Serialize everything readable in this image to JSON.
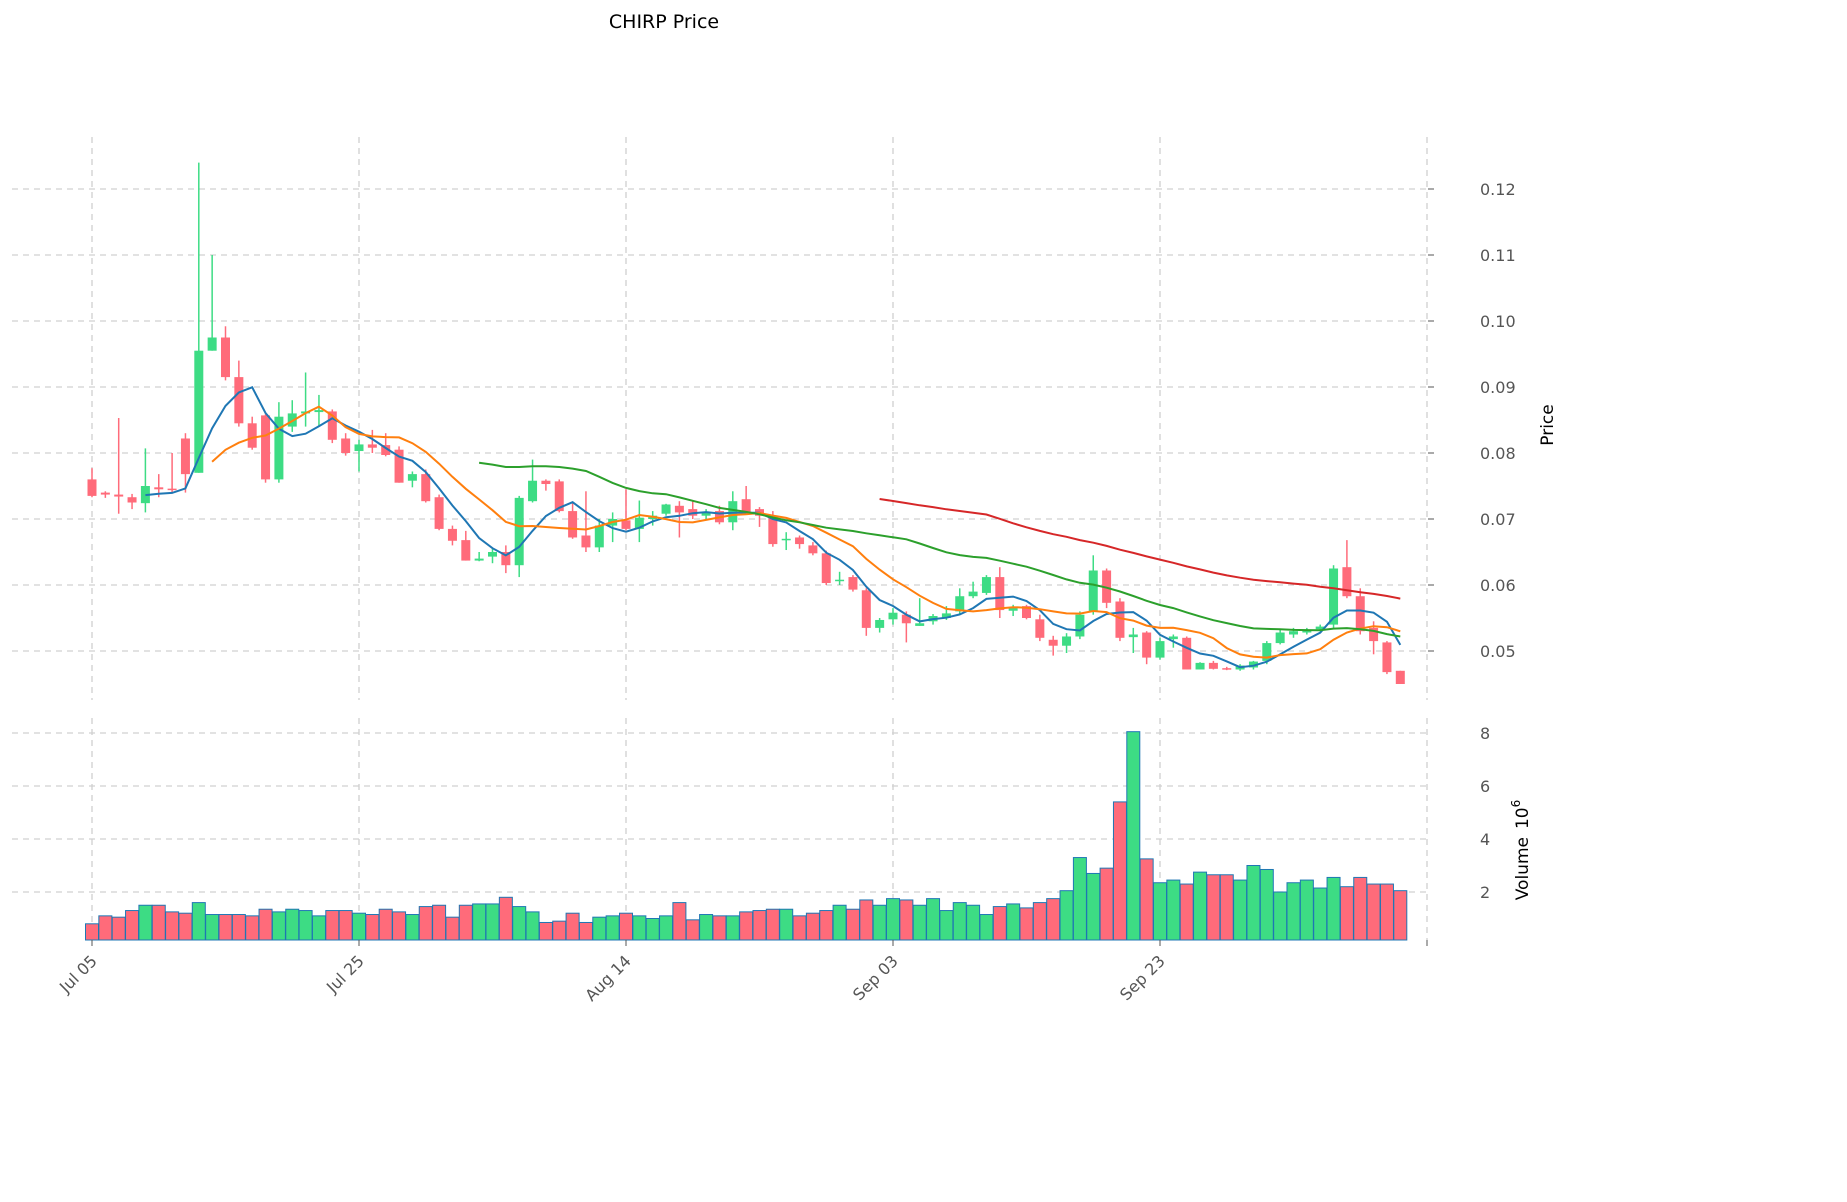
{
  "chart_data": {
    "type": "candlestick",
    "title": "CHIRP Price",
    "ylabel": "Price",
    "volume_label": "Volume",
    "volume_multiplier": "10",
    "volume_exponent": "6",
    "ylim": [
      0.043,
      0.128
    ],
    "volume_ylim": [
      0,
      8.3
    ],
    "yticks": [
      "0.05",
      "0.06",
      "0.07",
      "0.08",
      "0.09",
      "0.10",
      "0.11",
      "0.12"
    ],
    "volume_yticks": [
      "2",
      "4",
      "6",
      "8"
    ],
    "xtick_labels": [
      "Jul 05",
      "Jul 25",
      "Aug 14",
      "Sep 03",
      "Sep 23"
    ],
    "xtick_day_index": [
      0,
      20,
      40,
      60,
      80,
      100
    ],
    "grid": true,
    "moving_average_periods": [
      5,
      10,
      30,
      60
    ],
    "colors": {
      "up": "#3ddc84",
      "down": "#ff6b7a",
      "ma": [
        "#1f77b4",
        "#ff7f0e",
        "#2ca02c",
        "#d62728"
      ],
      "grid": "#d0d0d0",
      "edge": "#1f77b4"
    },
    "ohlc": [
      [
        0.076,
        0.0777,
        0.0733,
        0.0735
      ],
      [
        0.074,
        0.0742,
        0.0732,
        0.0737
      ],
      [
        0.0737,
        0.0853,
        0.0708,
        0.0734
      ],
      [
        0.0733,
        0.0738,
        0.0715,
        0.0725
      ],
      [
        0.0724,
        0.0807,
        0.071,
        0.075
      ],
      [
        0.0748,
        0.0768,
        0.0733,
        0.0745
      ],
      [
        0.0746,
        0.08,
        0.074,
        0.0744
      ],
      [
        0.0822,
        0.083,
        0.074,
        0.0768
      ],
      [
        0.077,
        0.124,
        0.077,
        0.0955
      ],
      [
        0.0955,
        0.11,
        0.0955,
        0.0975
      ],
      [
        0.0975,
        0.0992,
        0.091,
        0.0915
      ],
      [
        0.0915,
        0.094,
        0.084,
        0.0845
      ],
      [
        0.0845,
        0.0855,
        0.0805,
        0.0808
      ],
      [
        0.0857,
        0.086,
        0.0755,
        0.076
      ],
      [
        0.076,
        0.0877,
        0.0755,
        0.0855
      ],
      [
        0.084,
        0.088,
        0.0832,
        0.086
      ],
      [
        0.086,
        0.0922,
        0.084,
        0.0863
      ],
      [
        0.0862,
        0.0888,
        0.084,
        0.0865
      ],
      [
        0.0863,
        0.0866,
        0.0815,
        0.082
      ],
      [
        0.0822,
        0.083,
        0.0796,
        0.08
      ],
      [
        0.0803,
        0.082,
        0.0772,
        0.0813
      ],
      [
        0.0813,
        0.0835,
        0.08,
        0.0808
      ],
      [
        0.0812,
        0.083,
        0.0795,
        0.0797
      ],
      [
        0.0805,
        0.081,
        0.0755,
        0.0755
      ],
      [
        0.0758,
        0.0772,
        0.0748,
        0.0768
      ],
      [
        0.0768,
        0.0775,
        0.0725,
        0.0727
      ],
      [
        0.0733,
        0.0737,
        0.0683,
        0.0685
      ],
      [
        0.0685,
        0.069,
        0.066,
        0.0667
      ],
      [
        0.0668,
        0.0682,
        0.0637,
        0.0637
      ],
      [
        0.0637,
        0.065,
        0.0636,
        0.064
      ],
      [
        0.0643,
        0.0655,
        0.0633,
        0.065
      ],
      [
        0.065,
        0.066,
        0.0618,
        0.063
      ],
      [
        0.063,
        0.0735,
        0.0612,
        0.0732
      ],
      [
        0.0727,
        0.079,
        0.0725,
        0.0758
      ],
      [
        0.0758,
        0.076,
        0.0743,
        0.0753
      ],
      [
        0.0757,
        0.076,
        0.071,
        0.0712
      ],
      [
        0.0712,
        0.0725,
        0.067,
        0.0672
      ],
      [
        0.0675,
        0.0742,
        0.065,
        0.0657
      ],
      [
        0.0657,
        0.07,
        0.065,
        0.069
      ],
      [
        0.069,
        0.071,
        0.0665,
        0.07
      ],
      [
        0.0698,
        0.0745,
        0.0683,
        0.0685
      ],
      [
        0.0685,
        0.0728,
        0.0665,
        0.0702
      ],
      [
        0.07,
        0.0712,
        0.069,
        0.0705
      ],
      [
        0.0708,
        0.0723,
        0.0705,
        0.0722
      ],
      [
        0.072,
        0.0727,
        0.0672,
        0.071
      ],
      [
        0.0715,
        0.0727,
        0.07,
        0.0705
      ],
      [
        0.0705,
        0.0715,
        0.07,
        0.071
      ],
      [
        0.0712,
        0.072,
        0.0692,
        0.0695
      ],
      [
        0.0695,
        0.0742,
        0.0683,
        0.0727
      ],
      [
        0.073,
        0.075,
        0.0707,
        0.071
      ],
      [
        0.0715,
        0.0718,
        0.0688,
        0.0705
      ],
      [
        0.0705,
        0.0712,
        0.0658,
        0.0662
      ],
      [
        0.0668,
        0.068,
        0.0653,
        0.067
      ],
      [
        0.0672,
        0.0675,
        0.0655,
        0.0662
      ],
      [
        0.066,
        0.0665,
        0.0645,
        0.0648
      ],
      [
        0.0648,
        0.0652,
        0.06,
        0.0603
      ],
      [
        0.0606,
        0.062,
        0.06,
        0.0608
      ],
      [
        0.0612,
        0.0615,
        0.059,
        0.0593
      ],
      [
        0.0592,
        0.0595,
        0.0523,
        0.0535
      ],
      [
        0.0535,
        0.055,
        0.0528,
        0.0547
      ],
      [
        0.0548,
        0.0565,
        0.054,
        0.0558
      ],
      [
        0.0555,
        0.056,
        0.0513,
        0.0542
      ],
      [
        0.0538,
        0.058,
        0.0538,
        0.0542
      ],
      [
        0.0545,
        0.0556,
        0.054,
        0.0553
      ],
      [
        0.055,
        0.0568,
        0.0547,
        0.0557
      ],
      [
        0.056,
        0.0595,
        0.0555,
        0.0583
      ],
      [
        0.0583,
        0.0605,
        0.058,
        0.059
      ],
      [
        0.0588,
        0.0615,
        0.0585,
        0.0612
      ],
      [
        0.0612,
        0.0627,
        0.055,
        0.0562
      ],
      [
        0.0561,
        0.057,
        0.0553,
        0.0565
      ],
      [
        0.0568,
        0.057,
        0.0548,
        0.055
      ],
      [
        0.0548,
        0.0555,
        0.0515,
        0.052
      ],
      [
        0.0517,
        0.0523,
        0.0493,
        0.0508
      ],
      [
        0.0508,
        0.0527,
        0.0497,
        0.0522
      ],
      [
        0.0522,
        0.056,
        0.0518,
        0.0555
      ],
      [
        0.056,
        0.0645,
        0.0555,
        0.0622
      ],
      [
        0.0622,
        0.0625,
        0.0565,
        0.0573
      ],
      [
        0.0575,
        0.058,
        0.0515,
        0.052
      ],
      [
        0.0521,
        0.0535,
        0.0497,
        0.0525
      ],
      [
        0.0528,
        0.053,
        0.048,
        0.049
      ],
      [
        0.049,
        0.052,
        0.0487,
        0.0515
      ],
      [
        0.0518,
        0.0525,
        0.0505,
        0.0522
      ],
      [
        0.052,
        0.0522,
        0.0472,
        0.0472
      ],
      [
        0.0472,
        0.0483,
        0.0472,
        0.0482
      ],
      [
        0.0482,
        0.0485,
        0.0472,
        0.0473
      ],
      [
        0.0474,
        0.0476,
        0.0471,
        0.0472
      ],
      [
        0.0472,
        0.048,
        0.047,
        0.0478
      ],
      [
        0.0475,
        0.0485,
        0.0472,
        0.0484
      ],
      [
        0.0485,
        0.0515,
        0.048,
        0.0512
      ],
      [
        0.0512,
        0.0532,
        0.051,
        0.0528
      ],
      [
        0.0525,
        0.0535,
        0.052,
        0.053
      ],
      [
        0.0528,
        0.0535,
        0.0525,
        0.0532
      ],
      [
        0.0533,
        0.054,
        0.053,
        0.0537
      ],
      [
        0.054,
        0.063,
        0.0535,
        0.0625
      ],
      [
        0.0627,
        0.0668,
        0.058,
        0.0583
      ],
      [
        0.0583,
        0.0595,
        0.0525,
        0.053
      ],
      [
        0.0535,
        0.0545,
        0.0495,
        0.0515
      ],
      [
        0.0513,
        0.0515,
        0.0465,
        0.0468
      ],
      [
        0.047,
        0.047,
        0.045,
        0.045
      ]
    ],
    "volume_millions": [
      0.8,
      1.1,
      1.05,
      1.3,
      1.5,
      1.5,
      1.25,
      1.2,
      1.6,
      1.15,
      1.15,
      1.15,
      1.1,
      1.35,
      1.25,
      1.35,
      1.3,
      1.1,
      1.3,
      1.3,
      1.2,
      1.15,
      1.35,
      1.25,
      1.15,
      1.45,
      1.5,
      1.05,
      1.5,
      1.55,
      1.55,
      1.8,
      1.45,
      1.25,
      0.85,
      0.9,
      1.2,
      0.85,
      1.05,
      1.1,
      1.2,
      1.1,
      1.0,
      1.1,
      1.6,
      0.95,
      1.15,
      1.1,
      1.1,
      1.25,
      1.3,
      1.35,
      1.35,
      1.1,
      1.2,
      1.3,
      1.5,
      1.35,
      1.7,
      1.5,
      1.75,
      1.7,
      1.5,
      1.75,
      1.3,
      1.6,
      1.5,
      1.15,
      1.45,
      1.55,
      1.4,
      1.6,
      1.75,
      2.05,
      3.3,
      2.7,
      2.9,
      5.4,
      8.05,
      3.25,
      2.35,
      2.45,
      2.3,
      2.75,
      2.65,
      2.65,
      2.45,
      3.0,
      2.85,
      2.0,
      2.35,
      2.45,
      2.15,
      2.55,
      2.2,
      2.55,
      2.3,
      2.3,
      2.05
    ]
  }
}
